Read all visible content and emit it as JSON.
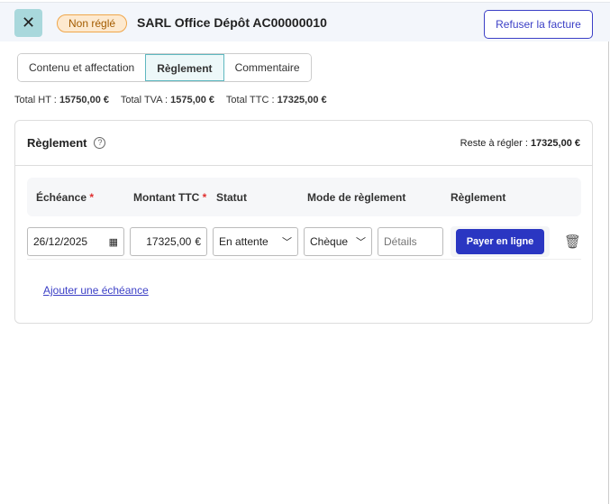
{
  "header": {
    "status_badge": "Non réglé",
    "title": "SARL Office Dépôt AC00000010",
    "refuse_label": "Refuser la facture"
  },
  "tabs": [
    {
      "label": "Contenu et affectation"
    },
    {
      "label": "Règlement",
      "active": true
    },
    {
      "label": "Commentaire"
    }
  ],
  "totals": {
    "ht_label": "Total HT :",
    "ht": "15750,00 €",
    "tva_label": "Total TVA :",
    "tva": "1575,00 €",
    "ttc_label": "Total TTC :",
    "ttc": "17325,00 €"
  },
  "card": {
    "title": "Règlement",
    "reste_label": "Reste à régler :",
    "reste": "17325,00 €",
    "columns": [
      "Échéance",
      "Montant TTC",
      "Statut",
      "Mode de règlement",
      "Règlement"
    ],
    "required_mark": "*",
    "row": {
      "date": "26/12/2025",
      "amount": "17325,00",
      "currency": "€",
      "status": "En attente",
      "mode": "Chèque",
      "details_placeholder": "Détails",
      "pay_label": "Payer en ligne"
    },
    "add_label": "Ajouter une échéance"
  },
  "colors": {
    "accent": "#2a36c2",
    "badge": "#f0a64a",
    "tab_active": "#5fb8c0"
  }
}
